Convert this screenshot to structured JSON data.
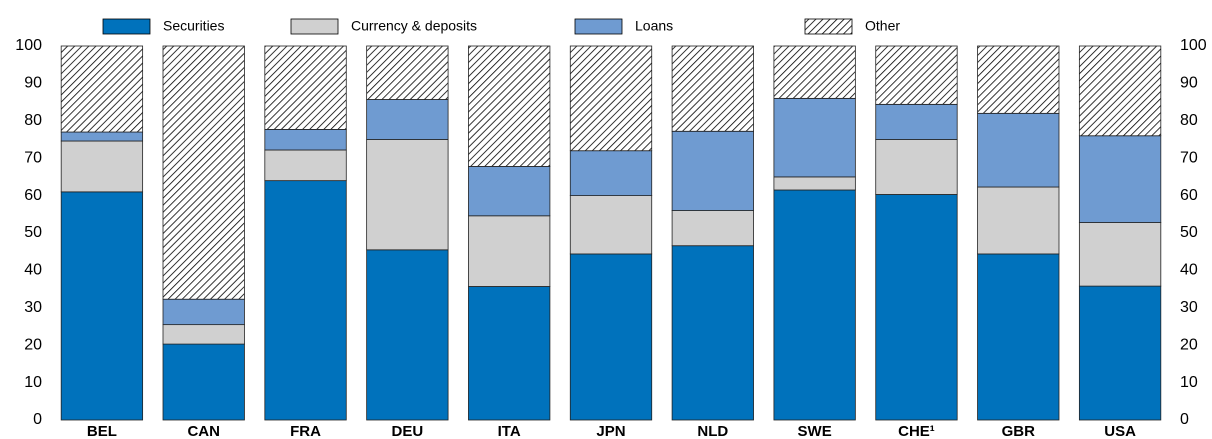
{
  "chart_data": {
    "type": "stacked_bar",
    "categories": [
      "BEL",
      "CAN",
      "FRA",
      "DEU",
      "ITA",
      "JPN",
      "NLD",
      "SWE",
      "CHE¹",
      "GBR",
      "USA"
    ],
    "series": [
      {
        "name": "Securities",
        "color": "#0072bc",
        "values": [
          61,
          20.3,
          64,
          45.5,
          35.7,
          44.4,
          46.6,
          61.5,
          60.3,
          44.4,
          35.8
        ]
      },
      {
        "name": "Currency & deposits",
        "color": "#d0d0d0",
        "values": [
          13.6,
          5.2,
          8.2,
          29.5,
          18.9,
          15.6,
          9.4,
          3.5,
          14.7,
          17.9,
          17
        ]
      },
      {
        "name": "Loans",
        "color": "#6f9bd1",
        "values": [
          2.4,
          6.8,
          5.5,
          10.7,
          13.2,
          12,
          21.2,
          21,
          9.4,
          19.7,
          23.2
        ]
      },
      {
        "name": "Other",
        "color": "#ffffff",
        "hatch": true,
        "values": [
          23,
          67.7,
          22.3,
          14.3,
          32.2,
          28,
          22.8,
          14,
          15.6,
          18,
          24
        ]
      }
    ],
    "ylim": [
      0,
      100
    ],
    "yticks": [
      0,
      10,
      20,
      30,
      40,
      50,
      60,
      70,
      80,
      90,
      100
    ],
    "y2lim": [
      0,
      100
    ],
    "y2ticks": [
      0,
      10,
      20,
      30,
      40,
      50,
      60,
      70,
      80,
      90,
      100
    ],
    "grid": false,
    "legend": "top"
  }
}
